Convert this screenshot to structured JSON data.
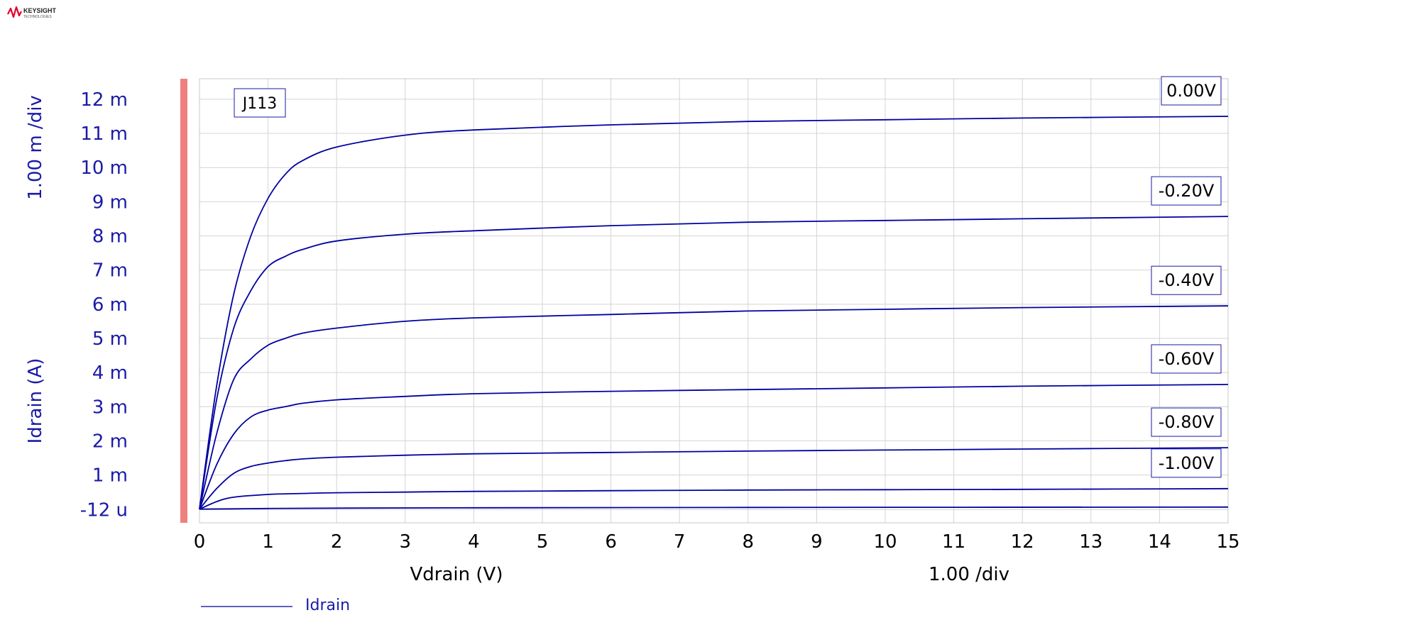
{
  "logo": {
    "line1": "KEYSIGHT",
    "line2": "TECHNOLOGIES",
    "color": "#e4002b"
  },
  "colors": {
    "curve": "#0000a0",
    "text_blue": "#1a1aa6",
    "grid": "#d4d4d4",
    "axis_bar": "#f08080",
    "label_text": "#000000"
  },
  "chart_data": {
    "type": "line",
    "device_label": "J113",
    "xlabel": "Vdrain (V)",
    "ylabel": "Idrain (A)",
    "x_div_label": "1.00  /div",
    "y_div_label": "1.00 m /div",
    "xlim": [
      0,
      15
    ],
    "ylim": [
      -0.4,
      12.6
    ],
    "x_ticks": [
      "0",
      "1",
      "2",
      "3",
      "4",
      "5",
      "6",
      "7",
      "8",
      "9",
      "10",
      "11",
      "12",
      "13",
      "14",
      "15"
    ],
    "y_ticks": [
      {
        "v": -0.012,
        "label": "-12 u"
      },
      {
        "v": 1,
        "label": "1 m"
      },
      {
        "v": 2,
        "label": "2 m"
      },
      {
        "v": 3,
        "label": "3 m"
      },
      {
        "v": 4,
        "label": "4 m"
      },
      {
        "v": 5,
        "label": "5 m"
      },
      {
        "v": 6,
        "label": "6 m"
      },
      {
        "v": 7,
        "label": "7 m"
      },
      {
        "v": 8,
        "label": "8 m"
      },
      {
        "v": 9,
        "label": "9 m"
      },
      {
        "v": 10,
        "label": "10 m"
      },
      {
        "v": 11,
        "label": "11 m"
      },
      {
        "v": 12,
        "label": "12 m"
      }
    ],
    "grid": true,
    "legend": {
      "entry": "Idrain",
      "placement": "bottom-left"
    },
    "series": [
      {
        "gate": "0.00V",
        "x": [
          0,
          0.25,
          0.5,
          0.75,
          1,
          1.25,
          1.5,
          2,
          3,
          4,
          6,
          8,
          10,
          12,
          15
        ],
        "y": [
          0,
          3.6,
          6.3,
          8.0,
          9.1,
          9.8,
          10.2,
          10.6,
          10.95,
          11.1,
          11.25,
          11.35,
          11.4,
          11.45,
          11.5
        ]
      },
      {
        "gate": "-0.20V",
        "x": [
          0,
          0.25,
          0.5,
          0.75,
          1,
          1.25,
          1.5,
          2,
          3,
          4,
          6,
          8,
          10,
          12,
          15
        ],
        "y": [
          0,
          3.2,
          5.3,
          6.4,
          7.1,
          7.4,
          7.6,
          7.85,
          8.05,
          8.15,
          8.3,
          8.4,
          8.45,
          8.5,
          8.57
        ]
      },
      {
        "gate": "-0.40V",
        "x": [
          0,
          0.25,
          0.5,
          0.75,
          1,
          1.25,
          1.5,
          2,
          3,
          4,
          6,
          8,
          10,
          12,
          15
        ],
        "y": [
          0,
          2.2,
          3.8,
          4.4,
          4.8,
          5.0,
          5.15,
          5.3,
          5.5,
          5.6,
          5.7,
          5.8,
          5.85,
          5.9,
          5.95
        ]
      },
      {
        "gate": "-0.60V",
        "x": [
          0,
          0.25,
          0.5,
          0.75,
          1,
          1.25,
          1.5,
          2,
          3,
          4,
          6,
          8,
          10,
          12,
          15
        ],
        "y": [
          0,
          1.3,
          2.2,
          2.7,
          2.9,
          3.0,
          3.1,
          3.2,
          3.3,
          3.38,
          3.45,
          3.5,
          3.55,
          3.6,
          3.65
        ]
      },
      {
        "gate": "-0.80V",
        "x": [
          0,
          0.25,
          0.5,
          0.75,
          1,
          1.25,
          1.5,
          2,
          3,
          4,
          6,
          8,
          10,
          12,
          15
        ],
        "y": [
          0,
          0.6,
          1.05,
          1.25,
          1.35,
          1.42,
          1.47,
          1.52,
          1.58,
          1.62,
          1.66,
          1.7,
          1.73,
          1.76,
          1.8
        ]
      },
      {
        "gate": "-1.00V",
        "x": [
          0,
          0.25,
          0.5,
          1,
          1.5,
          2,
          3,
          4,
          6,
          8,
          10,
          12,
          15
        ],
        "y": [
          0,
          0.22,
          0.35,
          0.43,
          0.46,
          0.48,
          0.5,
          0.52,
          0.54,
          0.56,
          0.57,
          0.58,
          0.6
        ]
      },
      {
        "gate": "",
        "x": [
          0,
          0.5,
          1,
          2,
          4,
          8,
          15
        ],
        "y": [
          0,
          0.01,
          0.02,
          0.03,
          0.04,
          0.05,
          0.06
        ]
      }
    ],
    "gate_labels": [
      {
        "text": "0.00V",
        "ref_y": 11.5
      },
      {
        "text": "-0.20V",
        "ref_y": 8.57
      },
      {
        "text": "-0.40V",
        "ref_y": 5.95
      },
      {
        "text": "-0.60V",
        "ref_y": 3.65
      },
      {
        "text": "-0.80V",
        "ref_y": 1.8
      },
      {
        "text": "-1.00V",
        "ref_y": 0.6
      }
    ]
  }
}
